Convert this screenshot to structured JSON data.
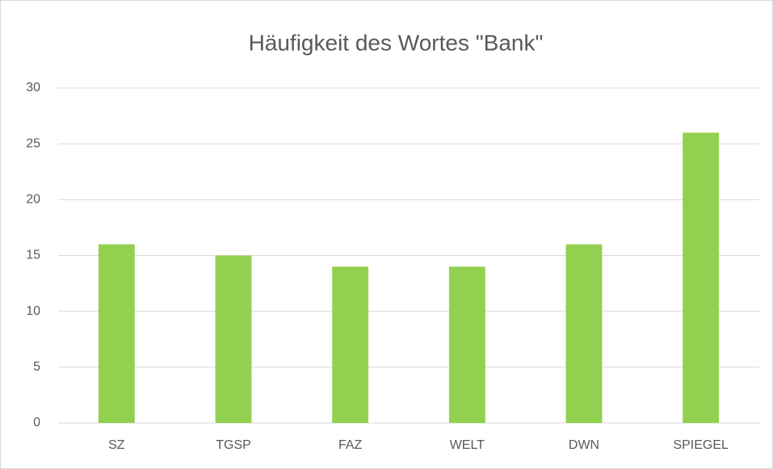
{
  "chart_data": {
    "type": "bar",
    "title": "Häufigkeit des Wortes \"Bank\"",
    "categories": [
      "SZ",
      "TGSP",
      "FAZ",
      "WELT",
      "DWN",
      "SPIEGEL"
    ],
    "values": [
      16,
      15,
      14,
      14,
      16,
      26
    ],
    "color": "#92d050",
    "ylim": [
      0,
      30
    ],
    "yticks": [
      0,
      5,
      10,
      15,
      20,
      25,
      30
    ],
    "grid": true
  }
}
